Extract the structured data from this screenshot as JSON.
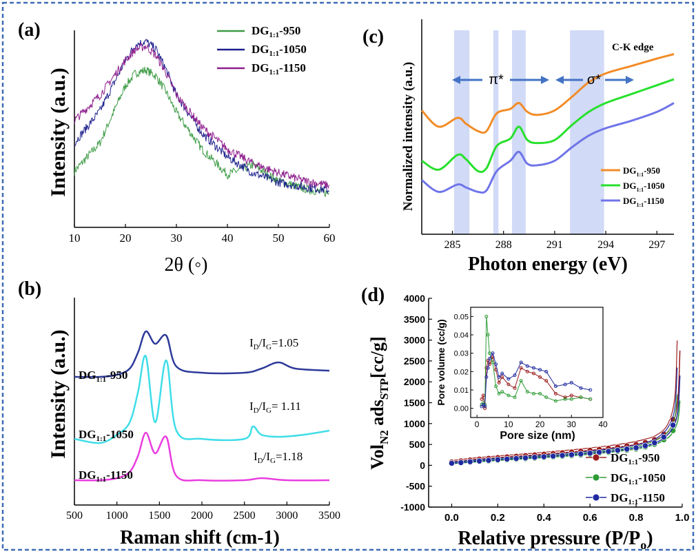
{
  "chart_data": [
    {
      "panel": "(a)",
      "type": "line",
      "xlabel": "2θ (◦)",
      "ylabel": "Intensity (a.u.)",
      "xlim": [
        10,
        60
      ],
      "xticks": [
        10,
        20,
        30,
        40,
        50,
        60
      ],
      "legend": "top-right",
      "series": [
        {
          "name_main": "DG",
          "name_sub": "1:1",
          "name_suffix": "-950",
          "color": "#3d9b45",
          "x": [
            10,
            15,
            20,
            22,
            24,
            26,
            28,
            30,
            35,
            40,
            45,
            50,
            55,
            60
          ],
          "y": [
            0.18,
            0.36,
            0.72,
            0.8,
            0.82,
            0.78,
            0.68,
            0.55,
            0.32,
            0.16,
            0.22,
            0.12,
            0.07,
            0.04
          ]
        },
        {
          "name_main": "DG",
          "name_sub": "1:1",
          "name_suffix": "-1050",
          "color": "#1c1f8c",
          "x": [
            10,
            15,
            20,
            22,
            24,
            26,
            28,
            30,
            35,
            40,
            45,
            50,
            55,
            60
          ],
          "y": [
            0.36,
            0.56,
            0.88,
            0.98,
            1.0,
            0.95,
            0.82,
            0.66,
            0.42,
            0.27,
            0.17,
            0.11,
            0.08,
            0.06
          ]
        },
        {
          "name_main": "DG",
          "name_sub": "1:1",
          "name_suffix": "-1150",
          "color": "#8e1e8c",
          "x": [
            10,
            15,
            20,
            22,
            24,
            26,
            28,
            30,
            35,
            40,
            45,
            50,
            55,
            60
          ],
          "y": [
            0.5,
            0.66,
            0.88,
            0.95,
            0.97,
            0.91,
            0.8,
            0.66,
            0.46,
            0.32,
            0.23,
            0.17,
            0.12,
            0.09
          ]
        }
      ]
    },
    {
      "panel": "(b)",
      "type": "line",
      "xlabel": "Raman shift (cm-1)",
      "ylabel": "Intensity (a.u.)",
      "xlim": [
        500,
        3500
      ],
      "xticks": [
        500,
        1000,
        1500,
        2000,
        2500,
        3000,
        3500
      ],
      "series": [
        {
          "name_main": "DG",
          "name_sub": "1:1",
          "name_suffix": "-950",
          "color": "#2e3a9a",
          "ratio_main": "I",
          "ratio_sub1": "D",
          "ratio_mid": "/I",
          "ratio_sub2": "G",
          "ratio_value": "=1.05",
          "x": [
            500,
            800,
            1000,
            1150,
            1250,
            1340,
            1450,
            1580,
            1700,
            2000,
            2500,
            2700,
            2900,
            3100,
            3500
          ],
          "y": [
            0.62,
            0.62,
            0.63,
            0.66,
            0.74,
            0.84,
            0.78,
            0.82,
            0.67,
            0.64,
            0.64,
            0.66,
            0.69,
            0.66,
            0.65
          ]
        },
        {
          "name_main": "DG",
          "name_sub": "1:1",
          "name_suffix": "-1050",
          "color": "#3fdde8",
          "ratio_main": "I",
          "ratio_sub1": "D",
          "ratio_mid": "/I",
          "ratio_sub2": "G",
          "ratio_value": "= 1.11",
          "x": [
            500,
            800,
            1000,
            1150,
            1250,
            1340,
            1450,
            1580,
            1700,
            2000,
            2500,
            2600,
            2700,
            2900,
            3200,
            3500
          ],
          "y": [
            0.32,
            0.3,
            0.34,
            0.4,
            0.55,
            0.72,
            0.4,
            0.7,
            0.36,
            0.32,
            0.32,
            0.38,
            0.34,
            0.33,
            0.34,
            0.36
          ]
        },
        {
          "name_main": "DG",
          "name_sub": "1:1",
          "name_suffix": "-1150",
          "color": "#e93de0",
          "ratio_main": "I",
          "ratio_sub1": "D",
          "ratio_mid": "/I",
          "ratio_sub2": "G",
          "ratio_value": "=1.18",
          "x": [
            500,
            800,
            1000,
            1150,
            1250,
            1340,
            1450,
            1580,
            1700,
            2000,
            2500,
            2700,
            3000,
            3500
          ],
          "y": [
            0.12,
            0.12,
            0.13,
            0.16,
            0.24,
            0.35,
            0.25,
            0.33,
            0.14,
            0.12,
            0.12,
            0.13,
            0.12,
            0.12
          ]
        }
      ]
    },
    {
      "panel": "(c)",
      "type": "line",
      "annotation": "C-K edge",
      "pi_label": "π*",
      "sigma_label": "σ*",
      "xlabel": "Photon energy (eV)",
      "ylabel": "Normalized intensity (a.u.)",
      "xlim": [
        283.2,
        298
      ],
      "xticks": [
        285,
        288,
        291,
        294,
        297
      ],
      "legend": "bottom-right",
      "shaded_bands_ev": [
        [
          285.1,
          286.0
        ],
        [
          287.4,
          287.7
        ],
        [
          288.5,
          289.3
        ],
        [
          291.9,
          293.9
        ]
      ],
      "series": [
        {
          "name_main": "DG",
          "name_sub": "1:1",
          "name_suffix": "-950",
          "color": "#f28c28",
          "x": [
            283.2,
            284.2,
            285.3,
            285.8,
            286.5,
            287.0,
            287.6,
            288.4,
            288.9,
            289.4,
            290.0,
            291.0,
            292.0,
            293.0,
            294.0,
            295.5,
            297.0,
            298.0
          ],
          "y": [
            0.65,
            0.54,
            0.6,
            0.56,
            0.51,
            0.51,
            0.63,
            0.66,
            0.7,
            0.64,
            0.62,
            0.65,
            0.74,
            0.84,
            0.9,
            0.95,
            1.0,
            1.03
          ]
        },
        {
          "name_main": "DG",
          "name_sub": "1:1",
          "name_suffix": "-1050",
          "color": "#27e02c",
          "x": [
            283.2,
            284.2,
            285.3,
            285.8,
            286.5,
            287.0,
            287.6,
            288.4,
            288.9,
            289.4,
            290.0,
            291.0,
            292.0,
            293.0,
            294.0,
            295.5,
            297.0,
            298.0
          ],
          "y": [
            0.31,
            0.25,
            0.35,
            0.32,
            0.24,
            0.26,
            0.41,
            0.46,
            0.54,
            0.45,
            0.43,
            0.45,
            0.55,
            0.64,
            0.7,
            0.76,
            0.82,
            0.86
          ]
        },
        {
          "name_main": "DG",
          "name_sub": "1:1",
          "name_suffix": "-1150",
          "color": "#6f74e8",
          "x": [
            283.2,
            284.2,
            285.3,
            285.8,
            286.5,
            287.0,
            287.6,
            288.4,
            288.9,
            289.4,
            290.0,
            291.0,
            292.0,
            293.0,
            294.0,
            295.5,
            297.0,
            298.0
          ],
          "y": [
            0.18,
            0.1,
            0.15,
            0.13,
            0.1,
            0.11,
            0.24,
            0.31,
            0.37,
            0.29,
            0.28,
            0.31,
            0.4,
            0.48,
            0.53,
            0.58,
            0.64,
            0.7
          ]
        }
      ]
    },
    {
      "panel": "(d)",
      "type": "line",
      "xlabel_main": "Relative pressure (P/P",
      "xlabel_sub": "o",
      "xlabel_end": ")",
      "ylabel_main": "Vol",
      "ylabel_sub1": "N2",
      "ylabel_mid": " ads",
      "ylabel_sub2": "STP",
      "ylabel_end": "[cc/g]",
      "xlim": [
        -0.1,
        1.0
      ],
      "ylim": [
        -1000,
        4000
      ],
      "xticks": [
        0.0,
        0.2,
        0.4,
        0.6,
        0.8,
        1.0
      ],
      "yticks": [
        -1000,
        -500,
        0,
        500,
        1000,
        1500,
        2000,
        2500,
        3000,
        3500,
        4000
      ],
      "legend": "bottom-right",
      "series": [
        {
          "name_main": "DG",
          "name_sub": "1:1",
          "name_suffix": "-950",
          "color": "#9b1c1c",
          "x": [
            0.0,
            0.05,
            0.1,
            0.2,
            0.3,
            0.4,
            0.5,
            0.6,
            0.7,
            0.8,
            0.85,
            0.9,
            0.95,
            0.98,
            0.99
          ],
          "y": [
            80,
            110,
            140,
            185,
            225,
            265,
            310,
            360,
            420,
            500,
            560,
            650,
            900,
            1500,
            2750
          ]
        },
        {
          "name_main": "DG",
          "name_sub": "1:1",
          "name_suffix": "-1050",
          "color": "#2e9b35",
          "x": [
            0.0,
            0.05,
            0.1,
            0.2,
            0.3,
            0.4,
            0.5,
            0.6,
            0.7,
            0.8,
            0.85,
            0.9,
            0.95,
            0.98,
            0.99
          ],
          "y": [
            40,
            60,
            80,
            115,
            150,
            185,
            220,
            265,
            320,
            390,
            450,
            540,
            720,
            1050,
            1550
          ]
        },
        {
          "name_main": "DG",
          "name_sub": "1:1",
          "name_suffix": "-1150",
          "color": "#1f2aa0",
          "x": [
            0.0,
            0.05,
            0.1,
            0.2,
            0.3,
            0.4,
            0.5,
            0.6,
            0.7,
            0.8,
            0.85,
            0.9,
            0.95,
            0.98,
            0.99
          ],
          "y": [
            50,
            70,
            95,
            135,
            170,
            205,
            245,
            290,
            345,
            420,
            480,
            580,
            820,
            1250,
            2150
          ]
        }
      ],
      "inset": {
        "xlabel": "Pore size (nm)",
        "ylabel": "Pore volume (cc/g)",
        "xlim": [
          -2,
          40
        ],
        "ylim": [
          -0.005,
          0.055
        ],
        "xticks": [
          0,
          10,
          20,
          30,
          40
        ],
        "yticks": [
          0.0,
          0.01,
          0.02,
          0.03,
          0.04,
          0.05
        ],
        "series": [
          {
            "color": "#9b1c1c",
            "x": [
              1.5,
              2,
              2.5,
              3,
              3.5,
              4,
              5,
              6,
              7,
              8,
              10,
              12,
              14,
              16,
              18,
              20,
              22,
              25,
              28,
              30,
              33,
              36
            ],
            "y": [
              0.005,
              0.007,
              0.0,
              0.022,
              0.026,
              0.024,
              0.028,
              0.021,
              0.014,
              0.017,
              0.013,
              0.011,
              0.022,
              0.02,
              0.019,
              0.017,
              0.015,
              0.008,
              0.006,
              0.007,
              0.006,
              0.005
            ]
          },
          {
            "color": "#2e9b35",
            "x": [
              1.5,
              2,
              2.5,
              3,
              3.5,
              4,
              5,
              6,
              7,
              8,
              10,
              12,
              14,
              16,
              18,
              20,
              22,
              25,
              28,
              30,
              33,
              36
            ],
            "y": [
              0.002,
              0.003,
              0.002,
              0.05,
              0.04,
              0.03,
              0.025,
              0.012,
              0.008,
              0.009,
              0.007,
              0.006,
              0.015,
              0.009,
              0.008,
              0.008,
              0.006,
              0.004,
              0.005,
              0.005,
              0.006,
              0.005
            ]
          },
          {
            "color": "#1f2aa0",
            "x": [
              1.5,
              2,
              2.5,
              3,
              3.5,
              4,
              5,
              6,
              7,
              8,
              10,
              12,
              14,
              16,
              18,
              20,
              22,
              25,
              28,
              30,
              33,
              36
            ],
            "y": [
              0.001,
              0.002,
              0.001,
              0.017,
              0.022,
              0.027,
              0.03,
              0.024,
              0.017,
              0.019,
              0.016,
              0.018,
              0.025,
              0.023,
              0.022,
              0.021,
              0.02,
              0.012,
              0.013,
              0.014,
              0.011,
              0.01
            ]
          }
        ]
      }
    }
  ]
}
